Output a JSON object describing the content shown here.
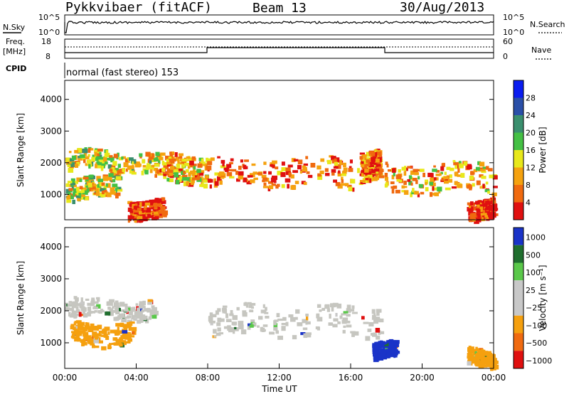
{
  "header": {
    "radar": "Pykkvibaer (fitACF)",
    "beam": "Beam 13",
    "date": "30/Aug/2013"
  },
  "panels": {
    "nsky": {
      "label": "N.Sky",
      "ticks_left": [
        "10^5",
        "10^0"
      ],
      "ticks_right": [
        "10^5",
        "10^0"
      ],
      "right_label": "N.Search"
    },
    "freq": {
      "label_line1": "Freq.",
      "label_line2": "[MHz]",
      "ticks_left": [
        "18",
        "8"
      ],
      "ticks_right": [
        "60",
        "0"
      ],
      "right_label": "Nave"
    },
    "cpid": {
      "label": "CPID",
      "text": "normal (fast stereo) 153"
    }
  },
  "colors": {
    "power_scale": [
      "#0a1cf0",
      "#2a4fa8",
      "#3a8f6e",
      "#44c044",
      "#e8e81a",
      "#f5a20f",
      "#f06a0f",
      "#e01010"
    ],
    "velocity_scale": [
      "#1a33c8",
      "#1f6e2e",
      "#5ac84a",
      "#c8c8c8",
      "#c8c8c8",
      "#f5a00f",
      "#f06a10",
      "#e01010"
    ],
    "gray": "#c6c6c0"
  },
  "chart_data": [
    {
      "type": "heatmap",
      "panel": "power",
      "ylabel": "Slant Range [km]",
      "yticks": [
        "1000",
        "2000",
        "3000",
        "4000"
      ],
      "ylim": [
        200,
        4600
      ],
      "colorbar_label": "Power [dB]",
      "colorbar_ticks": [
        "4",
        "8",
        "12",
        "16",
        "20",
        "24",
        "28"
      ],
      "bands": [
        {
          "t0": 0.0,
          "t1": 5.0,
          "r_low": 1800,
          "r_high": 2400,
          "level": 4
        },
        {
          "t0": 5.0,
          "t1": 8.0,
          "r_low": 1400,
          "r_high": 2300,
          "level": 5
        },
        {
          "t0": 8.0,
          "t1": 16.5,
          "r_low": 1300,
          "r_high": 2200,
          "level": 6
        },
        {
          "t0": 16.5,
          "t1": 17.6,
          "r_low": 1500,
          "r_high": 2400,
          "level": 6
        },
        {
          "t0": 17.9,
          "t1": 24.0,
          "r_low": 1100,
          "r_high": 2000,
          "level": 5
        },
        {
          "t0": 0.0,
          "t1": 3.0,
          "r_low": 900,
          "r_high": 1600,
          "level": 4
        },
        {
          "t0": 3.5,
          "t1": 5.5,
          "r_low": 300,
          "r_high": 900,
          "level": 7
        },
        {
          "t0": 22.5,
          "t1": 24.0,
          "r_low": 300,
          "r_high": 900,
          "level": 7
        }
      ]
    },
    {
      "type": "heatmap",
      "panel": "velocity",
      "ylabel": "Slant Range [km]",
      "yticks": [
        "1000",
        "2000",
        "3000",
        "4000"
      ],
      "ylim": [
        200,
        4600
      ],
      "colorbar_label": "Velocity [m s⁻¹]",
      "colorbar_ticks": [
        "1000",
        "500",
        "100",
        "25",
        "−25",
        "−100",
        "−500",
        "−1000"
      ],
      "xlabel": "Time UT",
      "xticks": [
        "00:00",
        "04:00",
        "08:00",
        "12:00",
        "16:00",
        "20:00",
        "00:00"
      ],
      "bands": [
        {
          "t0": 0.0,
          "t1": 5.0,
          "r_low": 1800,
          "r_high": 2400,
          "color": "gray"
        },
        {
          "t0": 8.0,
          "t1": 17.6,
          "r_low": 1300,
          "r_high": 2200,
          "color": "gray"
        },
        {
          "t0": 0.3,
          "t1": 3.8,
          "r_low": 1000,
          "r_high": 1700,
          "color": "orange"
        },
        {
          "t0": 17.2,
          "t1": 18.5,
          "r_low": 500,
          "r_high": 1000,
          "color": "blue"
        },
        {
          "t0": 22.5,
          "t1": 24.0,
          "r_low": 300,
          "r_high": 800,
          "color": "orange"
        }
      ]
    }
  ]
}
